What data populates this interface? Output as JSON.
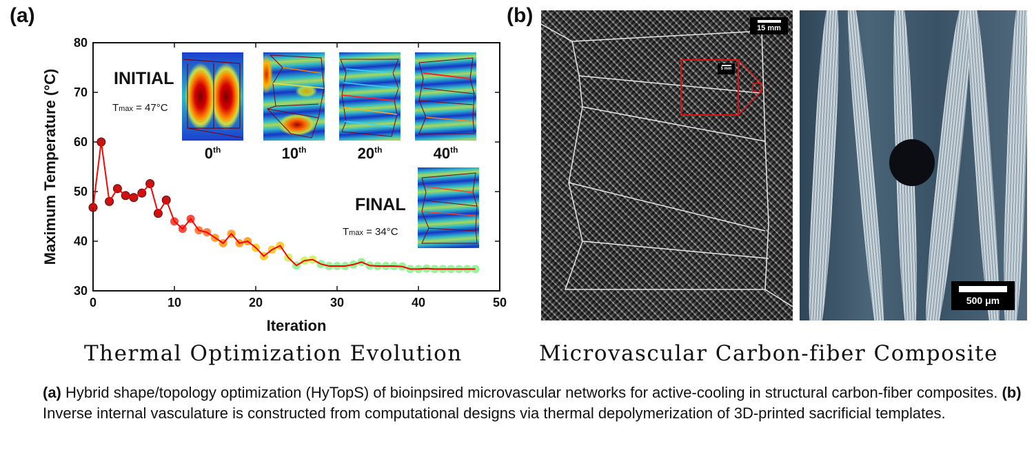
{
  "panel_a_label": "(a)",
  "panel_b_label": "(b)",
  "chart_data": {
    "type": "line",
    "title": "Thermal Optimization Evolution",
    "xlabel": "Iteration",
    "ylabel": "Maximum Temperature (°C)",
    "xlim": [
      0,
      50
    ],
    "ylim": [
      30,
      80
    ],
    "xticks": [
      0,
      10,
      20,
      30,
      40,
      50
    ],
    "yticks": [
      30,
      40,
      50,
      60,
      70,
      80
    ],
    "grid": false,
    "series": [
      {
        "name": "Maximum Temperature",
        "line_color": "#ff0000",
        "x": [
          0,
          1,
          2,
          3,
          4,
          5,
          6,
          7,
          8,
          9,
          10,
          11,
          12,
          13,
          14,
          15,
          16,
          17,
          18,
          19,
          20,
          21,
          22,
          23,
          24,
          25,
          26,
          27,
          28,
          29,
          30,
          31,
          32,
          33,
          34,
          35,
          36,
          37,
          38,
          39,
          40,
          41,
          42,
          43,
          44,
          45,
          46,
          47
        ],
        "values": [
          46.8,
          60,
          48,
          50.6,
          49.2,
          48.8,
          49.7,
          51.6,
          45.6,
          48.3,
          44,
          42.5,
          44.5,
          42.2,
          41.8,
          40.7,
          39.6,
          41.5,
          39.6,
          40,
          38.7,
          37,
          38.3,
          39.1,
          36.7,
          35.1,
          36.1,
          36.3,
          35.4,
          35,
          35,
          35,
          35.3,
          35.8,
          35.1,
          35,
          35,
          35,
          34.9,
          34.4,
          34.4,
          34.5,
          34.4,
          34.4,
          34.4,
          34.4,
          34.4,
          34.4
        ]
      }
    ],
    "marker_colors": {
      "high": "#b00000",
      "mid_high": "#f02010",
      "mid": "#ff8c00",
      "mid_low": "#ffc000",
      "low_mid": "#c8f040",
      "low": "#80f080"
    }
  },
  "insets": {
    "initial_label": "INITIAL",
    "initial_tmax_prefix": "T",
    "initial_tmax_sub": "max",
    "initial_tmax_value": " = 47°C",
    "final_label": "FINAL",
    "final_tmax_prefix": "T",
    "final_tmax_sub": "max",
    "final_tmax_value": " = 34°C",
    "iterations": [
      {
        "num": "0",
        "suffix": "th"
      },
      {
        "num": "10",
        "suffix": "th"
      },
      {
        "num": "20",
        "suffix": "th"
      },
      {
        "num": "40",
        "suffix": "th"
      }
    ]
  },
  "photos": {
    "scale_main": "15 mm",
    "scale_zoom": "5 mm",
    "scale_micro": "500 μm"
  },
  "titles": {
    "left": "Thermal Optimization Evolution",
    "right": "Microvascular Carbon-fiber Composite"
  },
  "caption": {
    "a_tag": "(a)",
    "a_text": " Hybrid shape/topology optimization (HyTopS) of bioinpsired microvascular networks for active-cooling in structural carbon-fiber composites.  ",
    "b_tag": "(b)",
    "b_text": " Inverse internal vasculature is constructed from computational designs via thermal depolymerization of 3D-printed sacrificial templates."
  }
}
